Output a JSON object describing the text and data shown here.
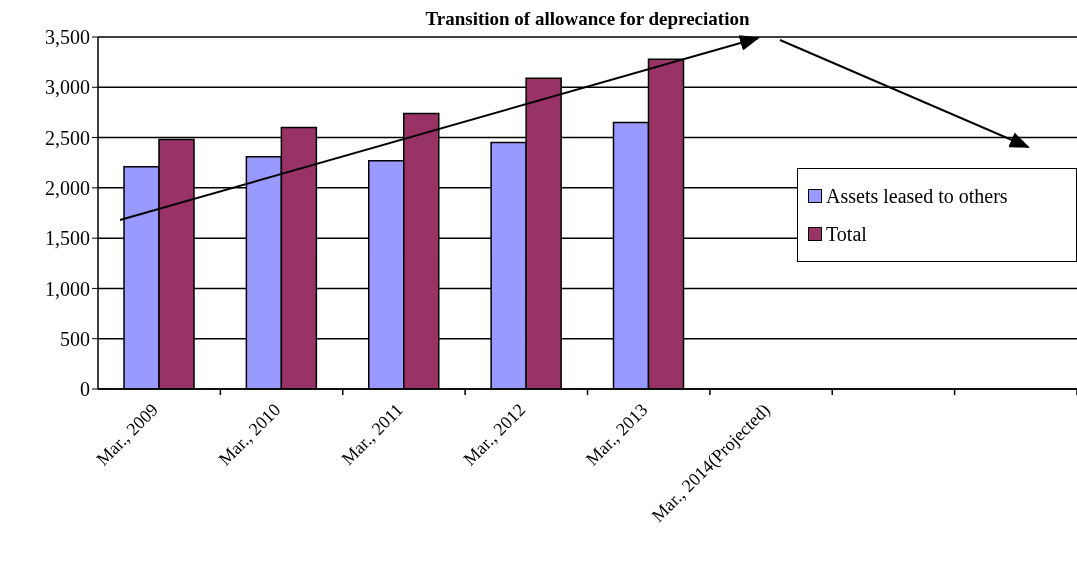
{
  "chart_data": {
    "type": "bar",
    "title": "Transition of allowance for depreciation",
    "categories": [
      "Mar., 2009",
      "Mar., 2010",
      "Mar., 2011",
      "Mar., 2012",
      "Mar., 2013",
      "Mar., 2014(Projected)",
      null,
      null
    ],
    "series": [
      {
        "name": "Assets leased to others",
        "color": "#9999ff",
        "values": [
          2210,
          2310,
          2270,
          2450,
          2650,
          null,
          null,
          null
        ]
      },
      {
        "name": "Total",
        "color": "#993366",
        "values": [
          2480,
          2600,
          2740,
          3090,
          3280,
          null,
          null,
          null
        ]
      }
    ],
    "ylim": [
      0,
      3500
    ],
    "yticks": [
      0,
      500,
      {
        "value": 1000,
        "label": "1,000"
      },
      {
        "value": 1500,
        "label": "1,500"
      },
      {
        "value": 2000,
        "label": "2,000"
      },
      {
        "value": 2500,
        "label": "2,500"
      },
      {
        "value": 3000,
        "label": "3,000"
      },
      {
        "value": 3500,
        "label": "3,500"
      }
    ],
    "grid": "y",
    "legend": "right"
  }
}
